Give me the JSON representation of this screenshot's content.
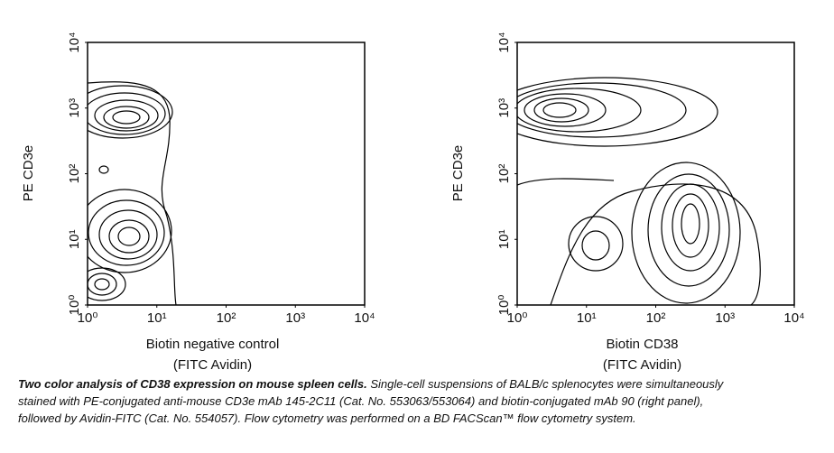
{
  "chart_data": [
    {
      "type": "contour",
      "ylabel": "PE CD3e",
      "xlabel": "Biotin negative control",
      "xlabel2": "(FITC Avidin)",
      "log": true,
      "xlim": [
        1,
        10000
      ],
      "ylim": [
        1,
        10000
      ],
      "xticks": [
        {
          "value": 1,
          "label": "10⁰"
        },
        {
          "value": 10,
          "label": "10¹"
        },
        {
          "value": 100,
          "label": "10²"
        },
        {
          "value": 1000,
          "label": "10³"
        },
        {
          "value": 10000,
          "label": "10⁴"
        }
      ],
      "yticks": [
        {
          "value": 1,
          "label": "10⁰"
        },
        {
          "value": 10,
          "label": "10¹"
        },
        {
          "value": 100,
          "label": "10²"
        },
        {
          "value": 1000,
          "label": "10³"
        },
        {
          "value": 10000,
          "label": "10⁴"
        }
      ]
    },
    {
      "type": "contour",
      "ylabel": "PE CD3e",
      "xlabel": "Biotin CD38",
      "xlabel2": "(FITC Avidin)",
      "log": true,
      "xlim": [
        1,
        10000
      ],
      "ylim": [
        1,
        10000
      ],
      "xticks": [
        {
          "value": 1,
          "label": "10⁰"
        },
        {
          "value": 10,
          "label": "10¹"
        },
        {
          "value": 100,
          "label": "10²"
        },
        {
          "value": 1000,
          "label": "10³"
        },
        {
          "value": 10000,
          "label": "10⁴"
        }
      ],
      "yticks": [
        {
          "value": 1,
          "label": "10⁰"
        },
        {
          "value": 10,
          "label": "10¹"
        },
        {
          "value": 100,
          "label": "10²"
        },
        {
          "value": 1000,
          "label": "10³"
        },
        {
          "value": 10000,
          "label": "10⁴"
        }
      ]
    }
  ],
  "caption": {
    "bold": "Two color analysis of CD38 expression on mouse spleen cells.",
    "text": " Single-cell suspensions of BALB/c splenocytes were simultaneously stained with PE-conjugated anti-mouse CD3e mAb 145-2C11 (Cat. No. 553063/553064) and biotin-conjugated mAb 90 (right panel), followed by Avidin-FITC (Cat. No. 554057). Flow cytometry was performed on a BD FACScan™ flow cytometry system."
  }
}
